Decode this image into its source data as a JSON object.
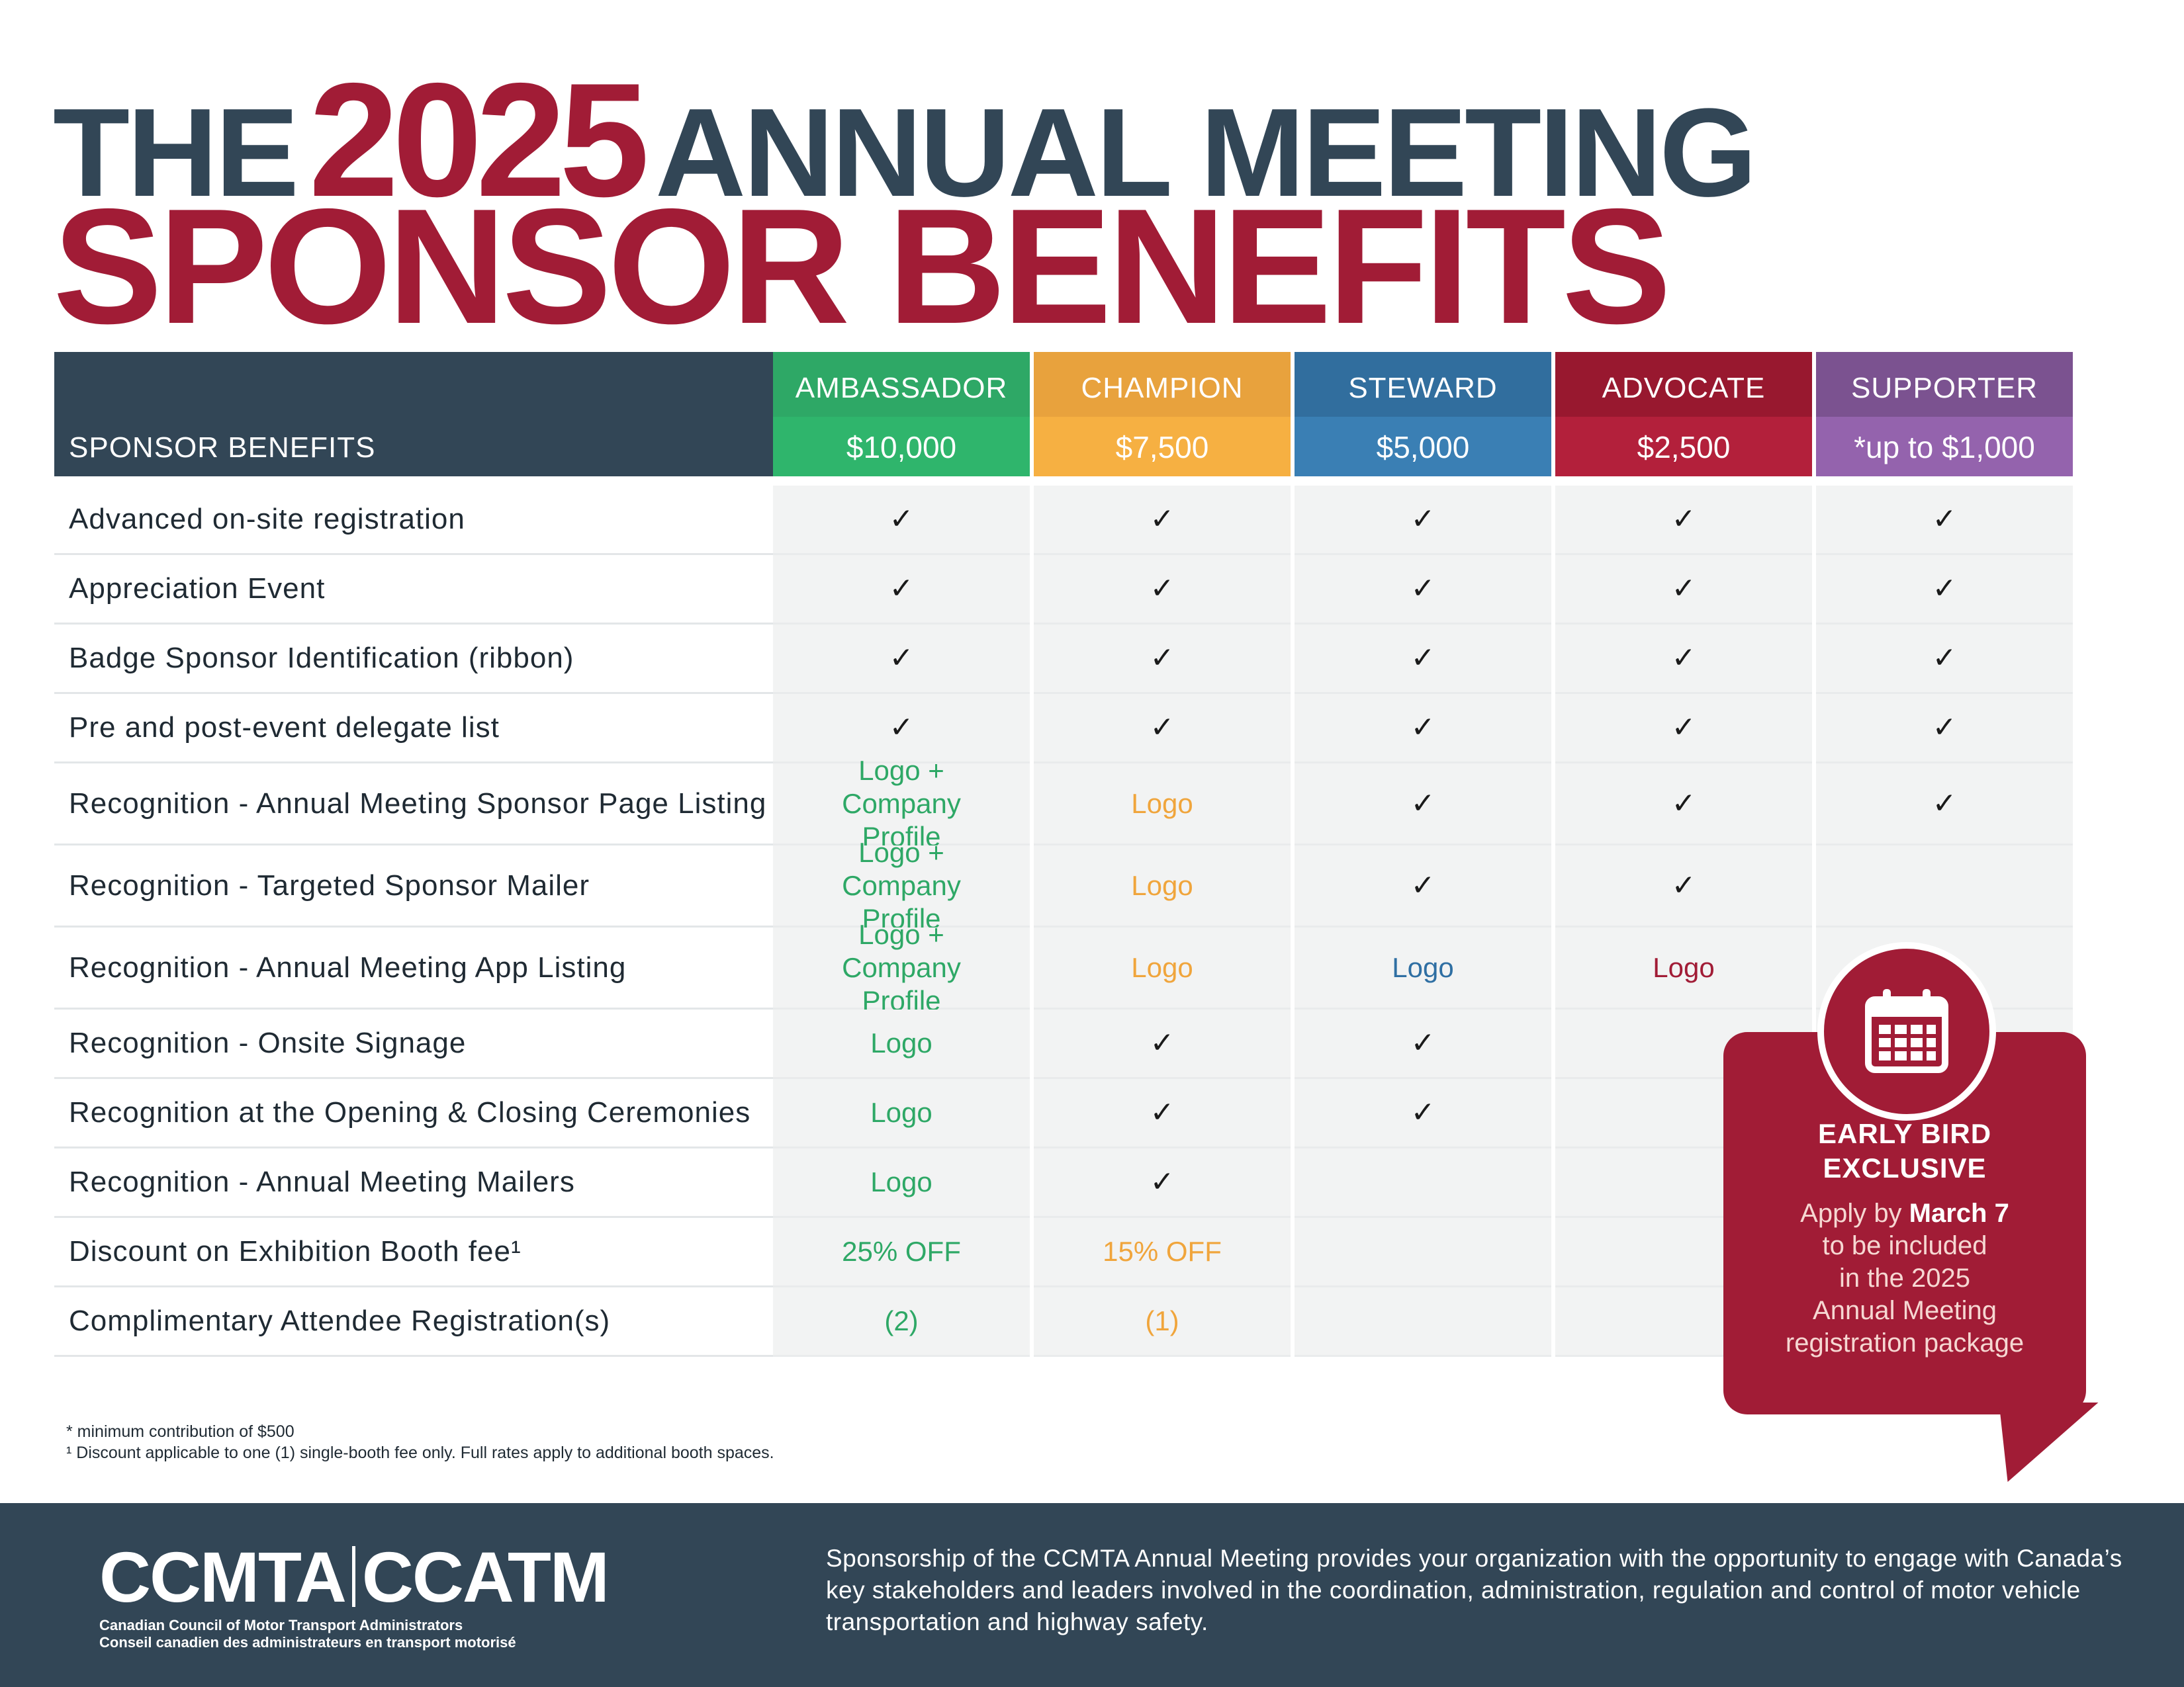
{
  "title": {
    "the": "THE",
    "year": "2025",
    "annual": "ANNUAL MEETING",
    "line2": "SPONSOR BENEFITS"
  },
  "table": {
    "header_label": "SPONSOR BENEFITS",
    "tiers": [
      {
        "name": "AMBASSADOR",
        "price": "$10,000",
        "color_top": "#2ea866",
        "color_bottom": "#2fb56c"
      },
      {
        "name": "CHAMPION",
        "price": "$7,500",
        "color_top": "#e8a23d",
        "color_bottom": "#f6b042"
      },
      {
        "name": "STEWARD",
        "price": "$5,000",
        "color_top": "#316e9e",
        "color_bottom": "#3a7fb4"
      },
      {
        "name": "ADVOCATE",
        "price": "$2,500",
        "color_top": "#98182f",
        "color_bottom": "#b3203b"
      },
      {
        "name": "SUPPORTER",
        "price": "*up to $1,000",
        "color_top": "#7b5290",
        "color_bottom": "#9463ad"
      }
    ],
    "rows": [
      {
        "label": "Advanced on-site registration",
        "cells": [
          "✓",
          "✓",
          "✓",
          "✓",
          "✓"
        ]
      },
      {
        "label": "Appreciation Event",
        "cells": [
          "✓",
          "✓",
          "✓",
          "✓",
          "✓"
        ]
      },
      {
        "label": "Badge Sponsor Identification (ribbon)",
        "cells": [
          "✓",
          "✓",
          "✓",
          "✓",
          "✓"
        ]
      },
      {
        "label": "Pre and post-event delegate list",
        "cells": [
          "✓",
          "✓",
          "✓",
          "✓",
          "✓"
        ]
      },
      {
        "label": "Recognition - Annual Meeting Sponsor Page Listing",
        "cells": [
          "Logo + Company Profile",
          "Logo",
          "✓",
          "✓",
          "✓"
        ]
      },
      {
        "label": "Recognition - Targeted Sponsor Mailer",
        "cells": [
          "Logo + Company Profile",
          "Logo",
          "✓",
          "✓",
          ""
        ]
      },
      {
        "label": "Recognition - Annual Meeting App Listing",
        "cells": [
          "Logo + Company Profile",
          "Logo",
          "Logo",
          "Logo",
          ""
        ]
      },
      {
        "label": "Recognition - Onsite Signage",
        "cells": [
          "Logo",
          "✓",
          "✓",
          "",
          ""
        ]
      },
      {
        "label": "Recognition at the Opening & Closing Ceremonies",
        "cells": [
          "Logo",
          "✓",
          "✓",
          "",
          ""
        ]
      },
      {
        "label": "Recognition - Annual Meeting Mailers",
        "cells": [
          "Logo",
          "✓",
          "",
          "",
          ""
        ]
      },
      {
        "label": "Discount on Exhibition Booth fee¹",
        "cells": [
          "25% OFF",
          "15% OFF",
          "",
          "",
          ""
        ]
      },
      {
        "label": "Complimentary Attendee Registration(s)",
        "cells": [
          "(2)",
          "(1)",
          "",
          "",
          ""
        ]
      }
    ]
  },
  "notes": [
    "* minimum contribution of $500",
    "¹ Discount applicable to one (1) single-booth fee only. Full rates apply to additional booth spaces."
  ],
  "callout": {
    "icon": "calendar-icon",
    "title_line1": "EARLY BIRD",
    "title_line2": "EXCLUSIVE",
    "text_prefix": "Apply by ",
    "text_bold": "March 7",
    "text_line2": "to be included",
    "text_line3": "in the 2025",
    "text_line4": "Annual Meeting",
    "text_line5": "registration package"
  },
  "footer": {
    "logo_left": "CCMTA",
    "logo_right": "CCATM",
    "logo_sub1": "Canadian Council of Motor Transport Administrators",
    "logo_sub2": "Conseil canadien des administrateurs en transport motorisé",
    "description": "Sponsorship of the CCMTA Annual Meeting provides your organization with the opportunity to engage with Canada’s key stakeholders and leaders involved in the coordination, administration, regulation and control of motor vehicle transportation and highway safety."
  },
  "colors": {
    "navy": "#324656",
    "crimson": "#a11c36",
    "cell_bg": "#f2f3f3"
  }
}
